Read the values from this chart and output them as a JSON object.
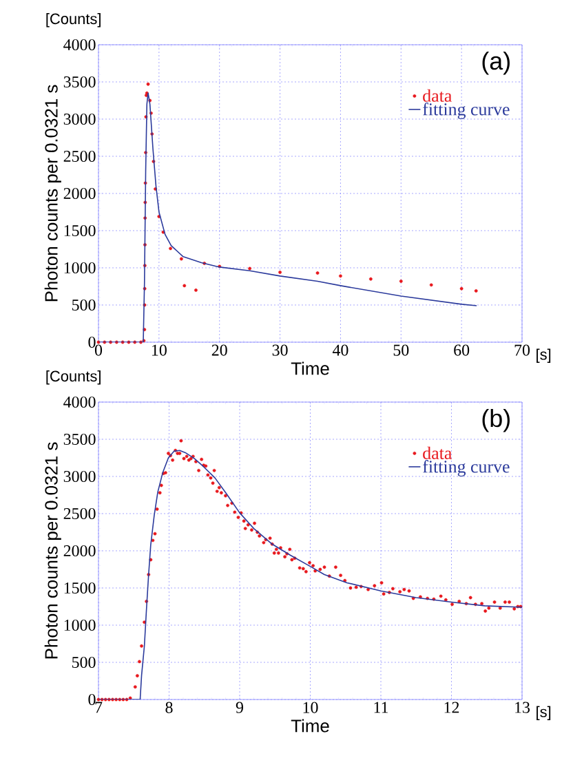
{
  "chart_data": [
    {
      "type": "scatter",
      "xlabel": "Time",
      "ylabel": "Photon counts per 0.0321 s",
      "annotations": [
        "[Counts]",
        "[s]",
        "(a)"
      ],
      "xlim": [
        0,
        70
      ],
      "ylim": [
        0,
        4000
      ],
      "xticks": [
        0,
        10,
        20,
        30,
        40,
        50,
        60,
        70
      ],
      "yticks": [
        0,
        500,
        1000,
        1500,
        2000,
        2500,
        3000,
        3500,
        4000
      ],
      "grid": true,
      "legend": "top right",
      "series": [
        {
          "name": "data",
          "color": "#e8191e",
          "marker": "circle",
          "x": [
            0,
            1,
            2,
            3,
            4,
            5,
            6,
            7,
            7.5,
            7.6,
            7.62,
            7.64,
            7.66,
            7.68,
            7.7,
            7.72,
            7.75,
            7.8,
            7.85,
            7.9,
            8.0,
            8.2,
            8.5,
            8.7,
            8.85,
            9.1,
            9.4,
            10,
            10.7,
            11.9,
            13.7,
            14.2,
            16.1,
            17.5,
            20,
            25,
            30,
            36.2,
            40,
            45,
            50,
            55,
            60,
            62.4
          ],
          "values": [
            0,
            0,
            0,
            0,
            0,
            0,
            0,
            0,
            20,
            170,
            500,
            720,
            1030,
            1310,
            1670,
            1880,
            2140,
            2550,
            3030,
            3320,
            3350,
            3470,
            3250,
            3080,
            2800,
            2430,
            2060,
            1690,
            1480,
            1260,
            1120,
            760,
            700,
            1060,
            1020,
            990,
            940,
            930,
            890,
            850,
            820,
            770,
            720,
            690
          ]
        },
        {
          "name": "fitting curve",
          "color": "#2b3a9c",
          "type": "line",
          "marker": "none",
          "x": [
            0,
            7.4,
            7.6,
            7.8,
            8.0,
            8.2,
            8.5,
            9.0,
            9.5,
            10,
            11,
            12,
            14,
            17,
            20,
            25,
            30,
            36.2,
            40,
            50,
            60,
            62.5
          ],
          "values": [
            0,
            0,
            800,
            2300,
            3200,
            3350,
            3200,
            2600,
            2100,
            1750,
            1450,
            1300,
            1150,
            1070,
            1010,
            960,
            890,
            820,
            760,
            620,
            510,
            490
          ]
        }
      ]
    },
    {
      "type": "scatter",
      "xlabel": "Time",
      "ylabel": "Photon counts per 0.0321 s",
      "annotations": [
        "[Counts]",
        "[s]",
        "(b)"
      ],
      "xlim": [
        7,
        13
      ],
      "ylim": [
        0,
        4000
      ],
      "xticks": [
        7,
        8,
        9,
        10,
        11,
        12,
        13
      ],
      "yticks": [
        0,
        500,
        1000,
        1500,
        2000,
        2500,
        3000,
        3500,
        4000
      ],
      "grid": true,
      "legend": "top right",
      "series": [
        {
          "name": "data",
          "color": "#e8191e",
          "marker": "circle",
          "x": [
            7.0,
            7.05,
            7.1,
            7.15,
            7.2,
            7.25,
            7.3,
            7.35,
            7.4,
            7.45,
            7.52,
            7.55,
            7.58,
            7.61,
            7.65,
            7.68,
            7.71,
            7.74,
            7.77,
            7.8,
            7.83,
            7.87,
            7.89,
            7.92,
            7.95,
            7.99,
            8.02,
            8.05,
            8.09,
            8.12,
            8.15,
            8.17,
            8.21,
            8.25,
            8.28,
            8.31,
            8.34,
            8.38,
            8.42,
            8.46,
            8.49,
            8.52,
            8.55,
            8.59,
            8.62,
            8.64,
            8.68,
            8.71,
            8.74,
            8.8,
            8.83,
            8.89,
            8.93,
            8.98,
            9.02,
            9.06,
            9.08,
            9.12,
            9.17,
            9.21,
            9.25,
            9.28,
            9.34,
            9.37,
            9.43,
            9.46,
            9.49,
            9.52,
            9.55,
            9.58,
            9.64,
            9.67,
            9.71,
            9.74,
            9.78,
            9.85,
            9.9,
            9.94,
            9.99,
            10.04,
            10.07,
            10.14,
            10.2,
            10.27,
            10.36,
            10.43,
            10.49,
            10.57,
            10.65,
            10.72,
            10.82,
            10.91,
            11.01,
            11.04,
            11.12,
            11.17,
            11.27,
            11.33,
            11.4,
            11.46,
            11.56,
            11.66,
            11.75,
            11.85,
            11.92,
            12.01,
            12.11,
            12.21,
            12.27,
            12.34,
            12.43,
            12.48,
            12.53,
            12.61,
            12.69,
            12.76,
            12.82,
            12.89,
            12.94,
            12.98
          ],
          "values": [
            0,
            0,
            0,
            0,
            0,
            0,
            0,
            0,
            0,
            20,
            170,
            320,
            510,
            720,
            1040,
            1320,
            1680,
            1880,
            2140,
            2230,
            2560,
            2780,
            2880,
            3040,
            3050,
            3310,
            3280,
            3220,
            3350,
            3310,
            3310,
            3480,
            3240,
            3270,
            3220,
            3240,
            3270,
            3200,
            3080,
            3230,
            3150,
            3140,
            3020,
            2980,
            2910,
            3080,
            2800,
            2850,
            2780,
            2740,
            2610,
            2640,
            2520,
            2450,
            2510,
            2400,
            2300,
            2350,
            2280,
            2370,
            2250,
            2200,
            2110,
            2150,
            2170,
            2090,
            1970,
            2020,
            1970,
            2040,
            1920,
            1960,
            2020,
            1880,
            1900,
            1770,
            1760,
            1720,
            1840,
            1800,
            1730,
            1750,
            1780,
            1660,
            1780,
            1670,
            1600,
            1500,
            1510,
            1520,
            1480,
            1530,
            1570,
            1420,
            1440,
            1490,
            1450,
            1480,
            1460,
            1360,
            1380,
            1360,
            1350,
            1390,
            1340,
            1280,
            1320,
            1290,
            1370,
            1280,
            1290,
            1190,
            1230,
            1310,
            1230,
            1310,
            1310,
            1220,
            1250,
            1250
          ]
        },
        {
          "name": "fitting curve",
          "color": "#2b3a9c",
          "type": "line",
          "marker": "none",
          "x": [
            7.0,
            7.59,
            7.61,
            7.65,
            7.68,
            7.71,
            7.74,
            7.79,
            7.84,
            7.91,
            7.99,
            8.07,
            8.15,
            8.23,
            8.36,
            8.49,
            8.65,
            8.81,
            9.0,
            9.2,
            9.46,
            9.72,
            10.0,
            10.2,
            10.52,
            11.0,
            11.5,
            12.0,
            12.47,
            13.0
          ],
          "values": [
            0,
            0,
            320,
            720,
            1220,
            1680,
            2080,
            2480,
            2790,
            3050,
            3250,
            3340,
            3350,
            3320,
            3240,
            3130,
            2980,
            2770,
            2510,
            2300,
            2090,
            1940,
            1790,
            1680,
            1570,
            1460,
            1370,
            1310,
            1260,
            1240
          ]
        }
      ]
    }
  ]
}
